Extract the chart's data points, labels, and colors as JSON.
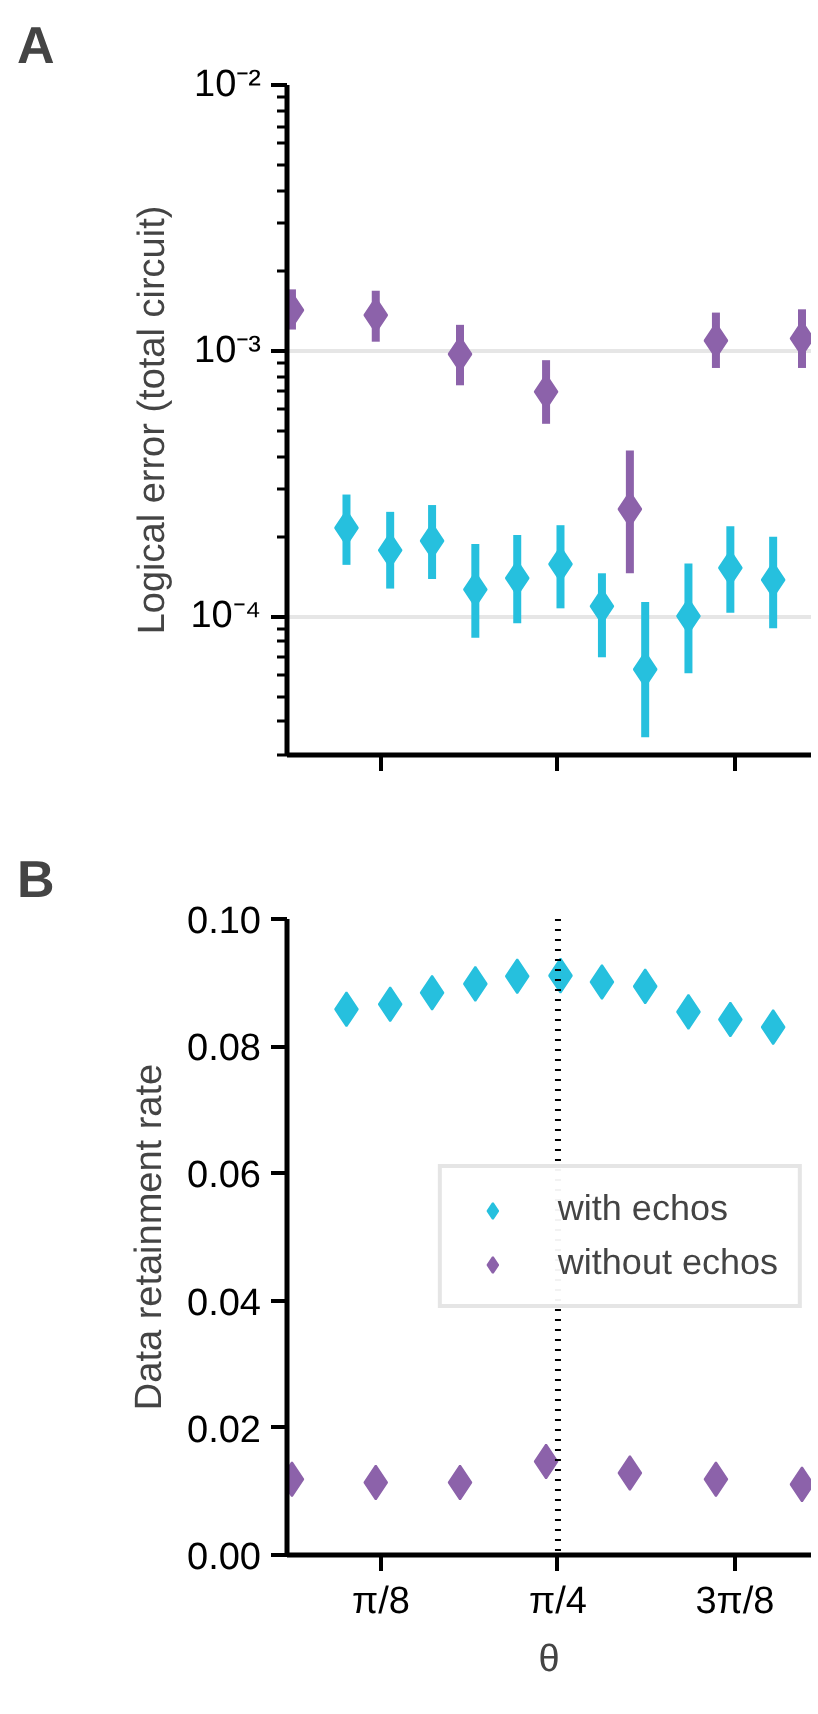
{
  "chart_data": [
    {
      "type": "scatter",
      "title": "A",
      "ylabel": "Logical error (total circuit)",
      "log": "y",
      "marker": "diamond",
      "grid": "y",
      "tick_labels": "y",
      "xlim": [
        0.184,
        1.347
      ],
      "xticks": [
        {
          "value": 0.3927,
          "label": null
        },
        {
          "value": 0.7854,
          "label": null
        },
        {
          "value": 1.1781,
          "label": null
        }
      ],
      "ylim": [
        3e-05,
        0.01
      ],
      "yticks": [
        {
          "value": 0.0001,
          "label": "10⁻⁴"
        },
        {
          "value": 0.001,
          "label": "10⁻³"
        },
        {
          "value": 0.01,
          "label": "10⁻²"
        }
      ],
      "series": [
        {
          "color": "#26c0de",
          "x": [
            0.316,
            0.413,
            0.506,
            0.602,
            0.695,
            0.791,
            0.883,
            0.979,
            1.075,
            1.168,
            1.263
          ],
          "values": [
            0.000215,
            0.000177,
            0.000192,
            0.000126,
            0.000139,
            0.000157,
            0.000109,
            6.3e-05,
            0.0001,
            0.000152,
            0.000137
          ],
          "errors": [
            [
              0.000156,
              0.000287
            ],
            [
              0.000127,
              0.000247
            ],
            [
              0.000138,
              0.000262
            ],
            [
              8.3e-05,
              0.000187
            ],
            [
              9.4e-05,
              0.000202
            ],
            [
              0.000107,
              0.00022
            ],
            [
              7e-05,
              0.000145
            ],
            [
              3.5e-05,
              0.000113
            ],
            [
              6.1e-05,
              0.000158
            ],
            [
              0.000103,
              0.000218
            ],
            [
              9e-05,
              0.000199
            ]
          ]
        },
        {
          "color": "#8c62aa",
          "x": [
            0.195,
            0.381,
            0.568,
            0.759,
            0.945,
            1.136,
            1.327
          ],
          "values": [
            0.00142,
            0.00136,
            0.00097,
            0.0007,
            0.000253,
            0.00109,
            0.00111
          ],
          "errors": [
            [
              0.0012,
              0.0017
            ],
            [
              0.00108,
              0.00168
            ],
            [
              0.00074,
              0.00125
            ],
            [
              0.00053,
              0.00092
            ],
            [
              0.000145,
              0.00042
            ],
            [
              0.00086,
              0.00139
            ],
            [
              0.00086,
              0.00143
            ]
          ]
        }
      ]
    },
    {
      "type": "scatter",
      "title": "B",
      "xlabel": "θ",
      "ylabel": "Data retainment rate",
      "marker": "diamond",
      "legend": "right",
      "xlim": [
        0.184,
        1.347
      ],
      "xticks": [
        {
          "value": 0.3927,
          "label": "π/8"
        },
        {
          "value": 0.7854,
          "label": "π/4"
        },
        {
          "value": 1.1781,
          "label": "3π/8"
        }
      ],
      "ylim": [
        0,
        0.1
      ],
      "yticks": [
        {
          "value": 0,
          "label": "0.00"
        },
        {
          "value": 0.02,
          "label": "0.02"
        },
        {
          "value": 0.04,
          "label": "0.04"
        },
        {
          "value": 0.06,
          "label": "0.06"
        },
        {
          "value": 0.08,
          "label": "0.08"
        },
        {
          "value": 0.1,
          "label": "0.10"
        }
      ],
      "ref_lines": [
        {
          "axis": "x",
          "value": 0.7854,
          "color": "#000000",
          "line_style": "dotted"
        }
      ],
      "series": [
        {
          "name": "with echos",
          "color": "#26c0de",
          "x": [
            0.316,
            0.413,
            0.506,
            0.602,
            0.695,
            0.791,
            0.883,
            0.979,
            1.075,
            1.168,
            1.263
          ],
          "values": [
            0.0858,
            0.0866,
            0.0884,
            0.0898,
            0.091,
            0.0911,
            0.0901,
            0.0894,
            0.0854,
            0.0842,
            0.083
          ]
        },
        {
          "name": "without echos",
          "color": "#8c62aa",
          "x": [
            0.195,
            0.381,
            0.568,
            0.759,
            0.945,
            1.136,
            1.327
          ],
          "values": [
            0.0119,
            0.0114,
            0.0114,
            0.0147,
            0.0129,
            0.0119,
            0.0111
          ]
        }
      ]
    }
  ]
}
